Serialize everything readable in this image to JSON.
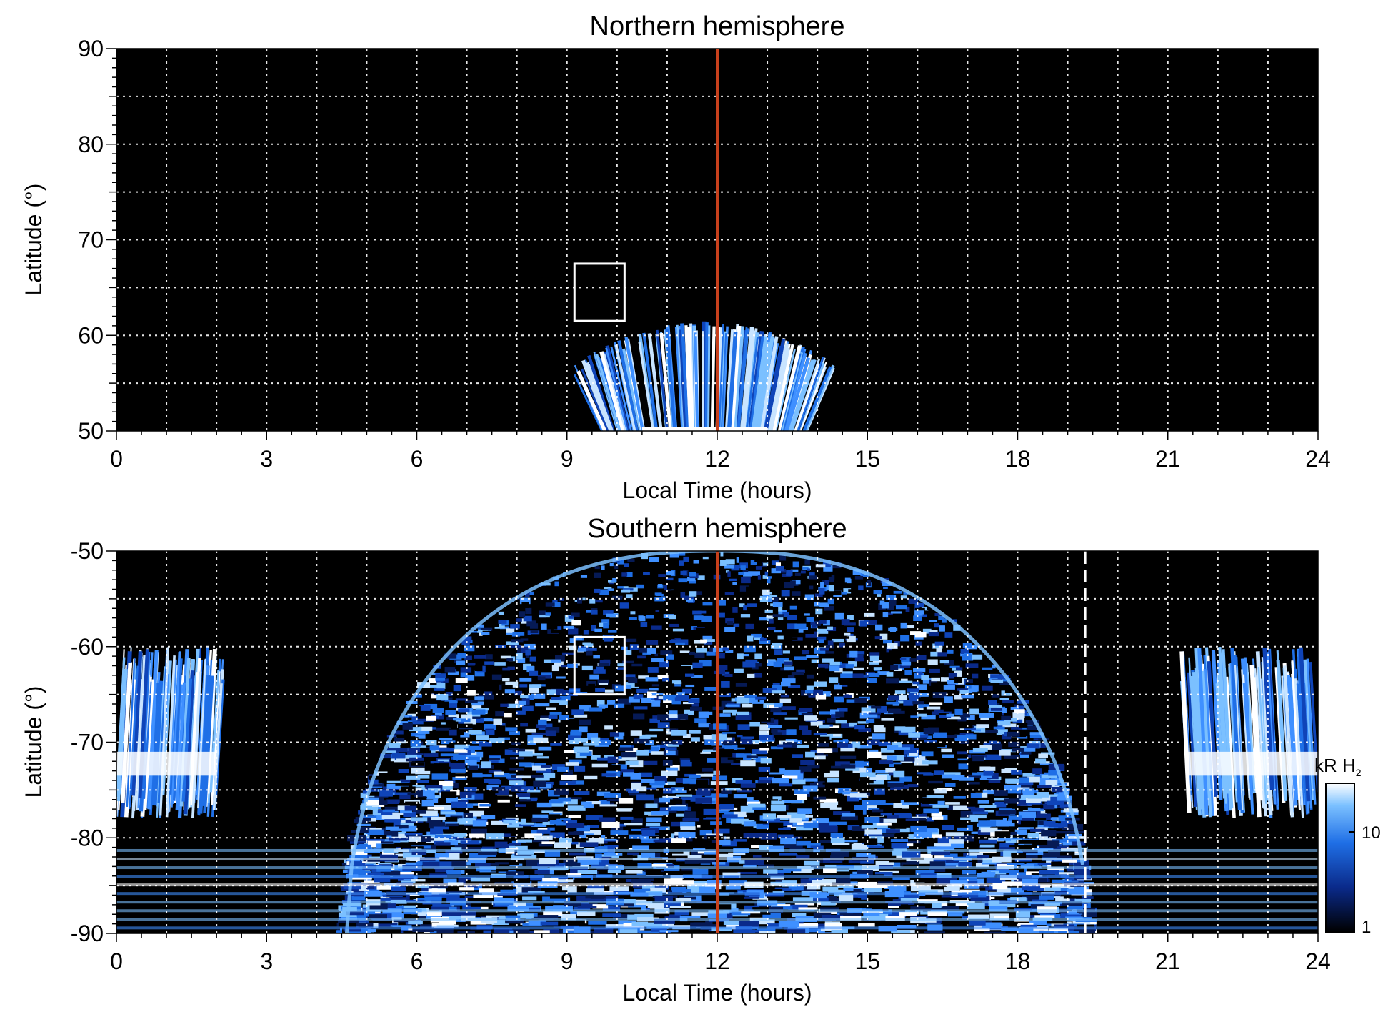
{
  "chart_data": [
    {
      "type": "heatmap",
      "title": "Northern hemisphere",
      "xlabel": "Local Time (hours)",
      "ylabel": "Latitude (°)",
      "xlim": [
        0,
        24
      ],
      "ylim": [
        50,
        90
      ],
      "xticks": [
        "0",
        "3",
        "6",
        "9",
        "12",
        "15",
        "18",
        "21",
        "24"
      ],
      "yticks": [
        "50",
        "60",
        "70",
        "80",
        "90"
      ],
      "grid": true,
      "reference_line": {
        "x": 12,
        "color": "#c8401c"
      },
      "box": {
        "x": [
          9.15,
          10.15
        ],
        "y": [
          61.5,
          67.5
        ]
      },
      "emission_region": {
        "x_range": [
          9.7,
          13.8
        ],
        "y_range": [
          50,
          61.5
        ]
      }
    },
    {
      "type": "heatmap",
      "title": "Southern hemisphere",
      "xlabel": "Local Time (hours)",
      "ylabel": "Latitude (°)",
      "xlim": [
        0,
        24
      ],
      "ylim": [
        -90,
        -50
      ],
      "xticks": [
        "0",
        "3",
        "6",
        "9",
        "12",
        "15",
        "18",
        "21",
        "24"
      ],
      "yticks": [
        "-90",
        "-80",
        "-70",
        "-60",
        "-50"
      ],
      "grid": true,
      "reference_line": {
        "x": 12,
        "color": "#c8401c"
      },
      "dashed_line": {
        "x": 19.35,
        "color": "#ffffff"
      },
      "box": {
        "x": [
          9.15,
          10.15
        ],
        "y": [
          -65,
          -59
        ]
      },
      "colorbar": {
        "label": "kR H",
        "label_subscript": "2",
        "ticks": [
          "1",
          "10"
        ],
        "scale": "log",
        "range": [
          1,
          30
        ],
        "colors": [
          "#000000",
          "#0a2a8a",
          "#1f6fe6",
          "#7bc0ff",
          "#ffffff"
        ]
      }
    }
  ]
}
